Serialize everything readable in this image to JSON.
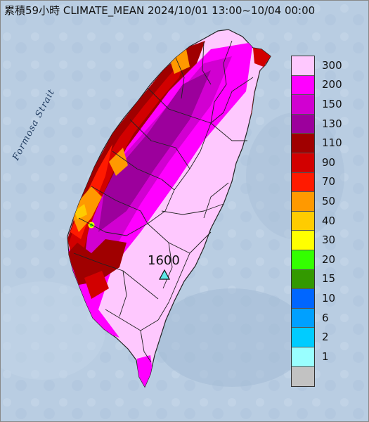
{
  "title": "累積59小時 CLIMATE_MEAN 2024/10/01 13:00~10/04 00:00",
  "strait_label": "Formosa Strait",
  "max_station": {
    "label": "1600",
    "marker": "triangle-marker"
  },
  "legend": {
    "labels": [
      "300",
      "200",
      "150",
      "130",
      "110",
      "90",
      "70",
      "50",
      "40",
      "30",
      "20",
      "15",
      "10",
      "6",
      "2",
      "1"
    ],
    "colors": [
      "#fec8fe",
      "#ff00ff",
      "#d100d1",
      "#9c009c",
      "#a00000",
      "#d20000",
      "#ff1a00",
      "#ff9900",
      "#ffcc00",
      "#ffff00",
      "#33ff00",
      "#339900",
      "#0066ff",
      "#00a0ff",
      "#00ccff",
      "#99ffff",
      "#c2c2c2"
    ]
  }
}
